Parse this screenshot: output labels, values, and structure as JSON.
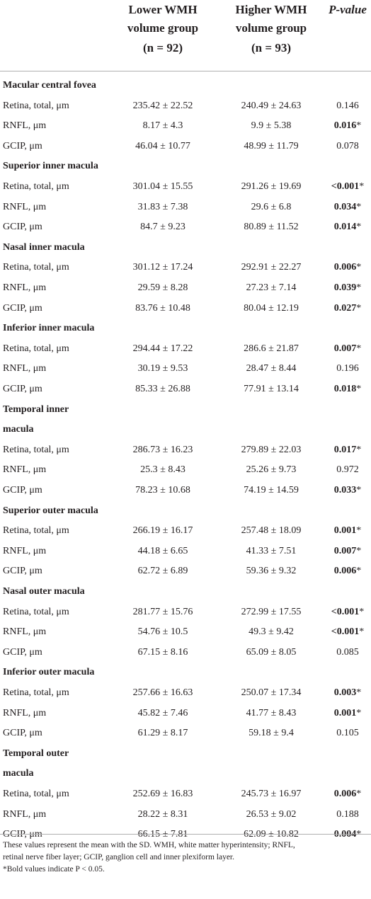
{
  "header": {
    "group1": [
      "Lower WMH",
      "volume group",
      "(n = 92)"
    ],
    "group2": [
      "Higher WMH",
      "volume group",
      "(n = 93)"
    ],
    "pvalue": "P-value"
  },
  "sections": [
    {
      "title": [
        "Macular central fovea"
      ],
      "rows": [
        {
          "label": "Retina, total, μm",
          "v1": "235.42 ± 22.52",
          "v2": "240.49 ± 24.63",
          "p": "0.146",
          "sig": false
        },
        {
          "label": "RNFL, μm",
          "v1": "8.17 ± 4.3",
          "v2": "9.9 ± 5.38",
          "p": "0.016",
          "sig": true
        },
        {
          "label": "GCIP, μm",
          "v1": "46.04 ± 10.77",
          "v2": "48.99 ± 11.79",
          "p": "0.078",
          "sig": false
        }
      ]
    },
    {
      "title": [
        "Superior inner macula"
      ],
      "rows": [
        {
          "label": "Retina, total, μm",
          "v1": "301.04 ± 15.55",
          "v2": "291.26 ± 19.69",
          "p": "<0.001",
          "sig": true
        },
        {
          "label": "RNFL, μm",
          "v1": "31.83 ± 7.38",
          "v2": "29.6 ± 6.8",
          "p": "0.034",
          "sig": true
        },
        {
          "label": "GCIP, μm",
          "v1": "84.7 ± 9.23",
          "v2": "80.89 ± 11.52",
          "p": "0.014",
          "sig": true
        }
      ]
    },
    {
      "title": [
        "Nasal inner macula"
      ],
      "rows": [
        {
          "label": "Retina, total, μm",
          "v1": "301.12 ± 17.24",
          "v2": "292.91 ± 22.27",
          "p": "0.006",
          "sig": true
        },
        {
          "label": "RNFL, μm",
          "v1": "29.59 ± 8.28",
          "v2": "27.23 ± 7.14",
          "p": "0.039",
          "sig": true
        },
        {
          "label": "GCIP, μm",
          "v1": "83.76 ± 10.48",
          "v2": "80.04 ± 12.19",
          "p": "0.027",
          "sig": true
        }
      ]
    },
    {
      "title": [
        "Inferior inner macula"
      ],
      "rows": [
        {
          "label": "Retina, total, μm",
          "v1": "294.44 ± 17.22",
          "v2": "286.6 ± 21.87",
          "p": "0.007",
          "sig": true
        },
        {
          "label": "RNFL, μm",
          "v1": "30.19 ± 9.53",
          "v2": "28.47 ± 8.44",
          "p": "0.196",
          "sig": false
        },
        {
          "label": "GCIP, μm",
          "v1": "85.33 ± 26.88",
          "v2": "77.91 ± 13.14",
          "p": "0.018",
          "sig": true
        }
      ]
    },
    {
      "title": [
        "Temporal inner",
        "macula"
      ],
      "rows": [
        {
          "label": "Retina, total, μm",
          "v1": "286.73 ± 16.23",
          "v2": "279.89 ± 22.03",
          "p": "0.017",
          "sig": true
        },
        {
          "label": "RNFL, μm",
          "v1": "25.3 ± 8.43",
          "v2": "25.26 ± 9.73",
          "p": "0.972",
          "sig": false
        },
        {
          "label": "GCIP, μm",
          "v1": "78.23 ± 10.68",
          "v2": "74.19 ± 14.59",
          "p": "0.033",
          "sig": true
        }
      ]
    },
    {
      "title": [
        "Superior outer macula"
      ],
      "rows": [
        {
          "label": "Retina, total, μm",
          "v1": "266.19 ± 16.17",
          "v2": "257.48 ± 18.09",
          "p": "0.001",
          "sig": true
        },
        {
          "label": "RNFL, μm",
          "v1": "44.18 ± 6.65",
          "v2": "41.33 ± 7.51",
          "p": "0.007",
          "sig": true
        },
        {
          "label": "GCIP, μm",
          "v1": "62.72 ± 6.89",
          "v2": "59.36 ± 9.32",
          "p": "0.006",
          "sig": true
        }
      ]
    },
    {
      "title": [
        "Nasal outer macula"
      ],
      "rows": [
        {
          "label": "Retina, total, μm",
          "v1": "281.77 ± 15.76",
          "v2": "272.99 ± 17.55",
          "p": "<0.001",
          "sig": true
        },
        {
          "label": "RNFL, μm",
          "v1": "54.76 ± 10.5",
          "v2": "49.3 ± 9.42",
          "p": "<0.001",
          "sig": true
        },
        {
          "label": "GCIP, μm",
          "v1": "67.15 ± 8.16",
          "v2": "65.09 ± 8.05",
          "p": "0.085",
          "sig": false
        }
      ]
    },
    {
      "title": [
        "Inferior outer macula"
      ],
      "rows": [
        {
          "label": "Retina, total, μm",
          "v1": "257.66 ± 16.63",
          "v2": "250.07 ± 17.34",
          "p": "0.003",
          "sig": true
        },
        {
          "label": "RNFL, μm",
          "v1": "45.82 ± 7.46",
          "v2": "41.77 ± 8.43",
          "p": "0.001",
          "sig": true
        },
        {
          "label": "GCIP, μm",
          "v1": "61.29 ± 8.17",
          "v2": "59.18 ± 9.4",
          "p": "0.105",
          "sig": false
        }
      ]
    },
    {
      "title": [
        "Temporal outer",
        "macula"
      ],
      "rows": [
        {
          "label": "Retina, total, μm",
          "v1": "252.69 ± 16.83",
          "v2": "245.73 ± 16.97",
          "p": "0.006",
          "sig": true
        },
        {
          "label": "RNFL, μm",
          "v1": "28.22 ± 8.31",
          "v2": "26.53 ± 9.02",
          "p": "0.188",
          "sig": false
        },
        {
          "label": "GCIP, μm",
          "v1": "66.15 ± 7.81",
          "v2": "62.09 ± 10.82",
          "p": "0.004",
          "sig": true
        }
      ]
    }
  ],
  "footnote": {
    "line1": "These values represent the mean with the SD. WMH, white matter hyperintensity; RNFL,",
    "line2": "retinal nerve fiber layer; GCIP, ganglion cell and inner plexiform layer.",
    "line3": "*Bold values indicate P < 0.05."
  }
}
